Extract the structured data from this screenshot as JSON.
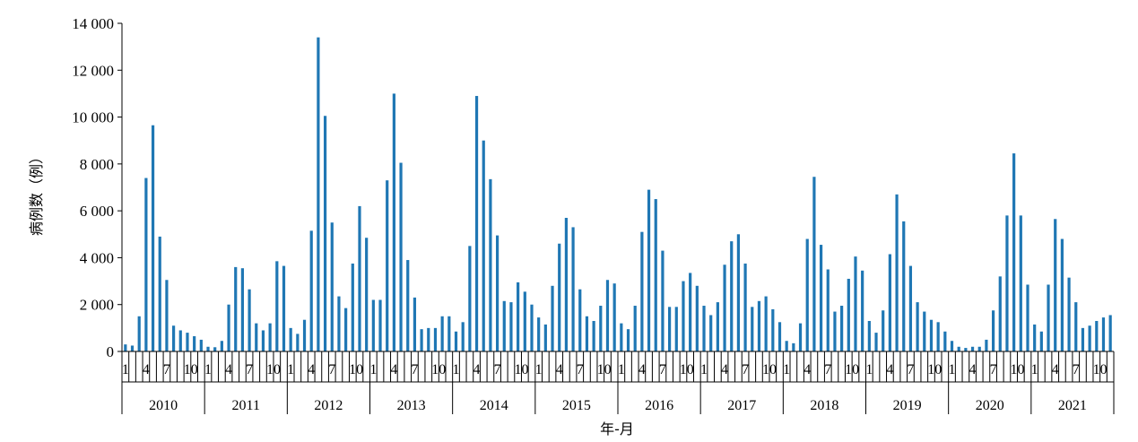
{
  "chart_data": {
    "type": "bar",
    "xlabel": "年-月",
    "ylabel": "病例数（例）",
    "ylim": [
      0,
      14000
    ],
    "y_ticks": [
      0,
      2000,
      4000,
      6000,
      8000,
      10000,
      12000,
      14000
    ],
    "y_tick_labels": [
      "0",
      "2 000",
      "4 000",
      "6 000",
      "8 000",
      "10 000",
      "12 000",
      "14 000"
    ],
    "month_tick_labels": [
      "1",
      "4",
      "7",
      "10"
    ],
    "years": [
      "2010",
      "2011",
      "2012",
      "2013",
      "2014",
      "2015",
      "2016",
      "2017",
      "2018",
      "2019",
      "2020",
      "2021"
    ],
    "bar_color": "#1f77b4",
    "grid": false,
    "series": [
      {
        "values": [
          300,
          250,
          1500,
          7400,
          9650,
          4900,
          3050,
          1100,
          900,
          800,
          650,
          500,
          200,
          180,
          450,
          2000,
          3600,
          3550,
          2650,
          1200,
          900,
          1200,
          3850,
          3650,
          1000,
          750,
          1350,
          5150,
          13400,
          10050,
          5500,
          2350,
          1850,
          3750,
          6200,
          4850,
          2200,
          2200,
          7300,
          11000,
          8050,
          3900,
          2300,
          950,
          1000,
          1000,
          1500,
          1500,
          850,
          1250,
          4500,
          10900,
          9000,
          7350,
          4950,
          2150,
          2100,
          2950,
          2550,
          2000,
          1450,
          1150,
          2800,
          4600,
          5700,
          5300,
          2650,
          1500,
          1300,
          1950,
          3050,
          2900,
          1200,
          950,
          1950,
          5100,
          6900,
          6500,
          4300,
          1900,
          1900,
          3000,
          3350,
          2800,
          1950,
          1550,
          2100,
          3700,
          4700,
          5000,
          3750,
          1900,
          2150,
          2350,
          1800,
          1250,
          450,
          350,
          1200,
          4800,
          7450,
          4550,
          3500,
          1700,
          1950,
          3100,
          4050,
          3450,
          1300,
          800,
          1750,
          4150,
          6700,
          5550,
          3650,
          2100,
          1700,
          1350,
          1250,
          850,
          450,
          200,
          150,
          200,
          200,
          500,
          1750,
          3200,
          5800,
          8450,
          5800,
          2850,
          1150,
          850,
          2850,
          5650,
          4800,
          3150,
          2100,
          1000,
          1100,
          1300,
          1450,
          1550
        ]
      }
    ]
  }
}
